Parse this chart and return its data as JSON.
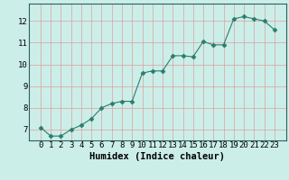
{
  "xlabel": "Humidex (Indice chaleur)",
  "x": [
    0,
    1,
    2,
    3,
    4,
    5,
    6,
    7,
    8,
    9,
    10,
    11,
    12,
    13,
    14,
    15,
    16,
    17,
    18,
    19,
    20,
    21,
    22,
    23
  ],
  "y": [
    7.1,
    6.7,
    6.7,
    7.0,
    7.2,
    7.5,
    8.0,
    8.2,
    8.3,
    8.3,
    9.6,
    9.7,
    9.7,
    10.4,
    10.4,
    10.35,
    11.05,
    10.9,
    10.9,
    12.1,
    12.2,
    12.1,
    12.0,
    11.6
  ],
  "line_color": "#2a7d6e",
  "marker": "D",
  "markersize": 2.5,
  "bg_color": "#cceee8",
  "grid_color_major": "#d9a0a0",
  "ylim": [
    6.5,
    12.8
  ],
  "yticks": [
    7,
    8,
    9,
    10,
    11,
    12
  ],
  "xticks": [
    0,
    1,
    2,
    3,
    4,
    5,
    6,
    7,
    8,
    9,
    10,
    11,
    12,
    13,
    14,
    15,
    16,
    17,
    18,
    19,
    20,
    21,
    22,
    23
  ],
  "xlabel_fontsize": 7.5,
  "tick_fontsize": 6.5
}
